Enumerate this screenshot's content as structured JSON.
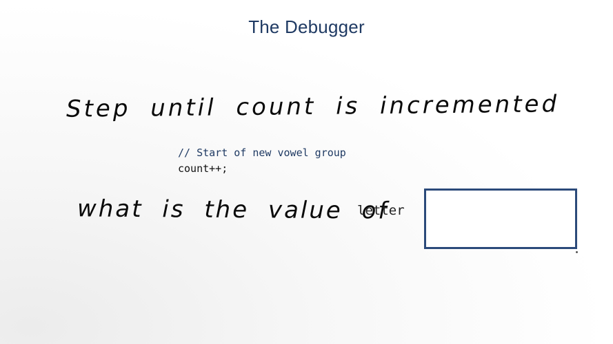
{
  "slide": {
    "title": "The Debugger",
    "instruction": "Step until count is incremented",
    "code": {
      "comment": "// Start of new vowel group",
      "statement": "count++;"
    },
    "question": "what is the value of",
    "variable": "letter",
    "answer_value": ""
  }
}
